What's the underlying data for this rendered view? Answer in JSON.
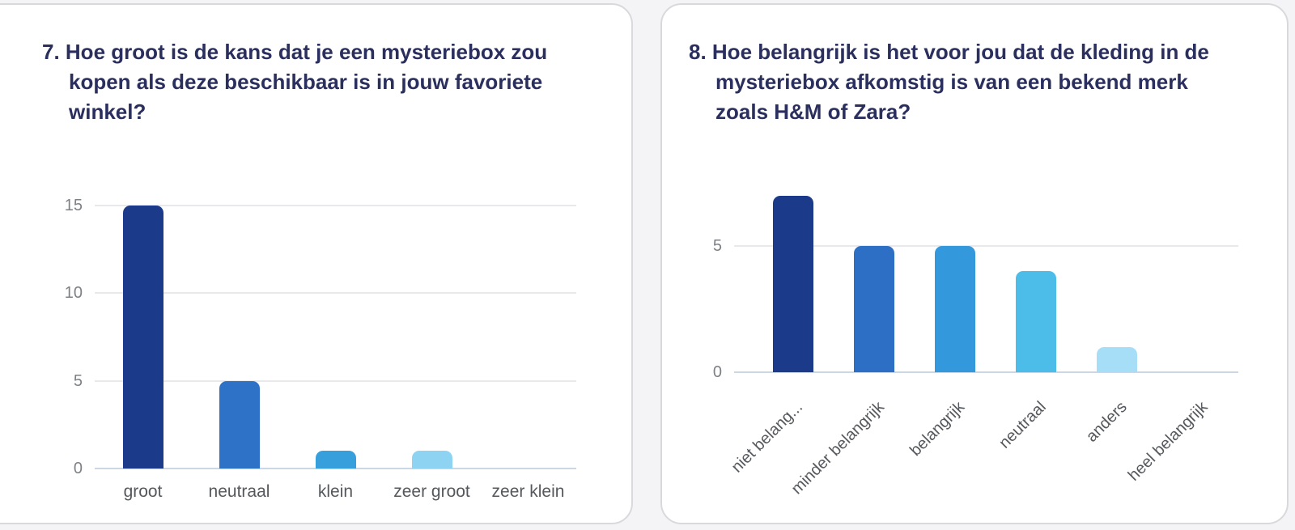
{
  "page": {
    "background": "#f4f4f6",
    "card_background": "#ffffff",
    "card_border_color": "#d9d9dd"
  },
  "colors": {
    "title_text": "#2b2f5e",
    "y_tick_text": "#7d8186",
    "x_label_text": "#55585c",
    "gridline": "#e9e9eb",
    "baseline": "#ccd7e6"
  },
  "chart_data": [
    {
      "type": "bar",
      "title_lines": [
        "7. Hoe groot is de kans dat je een mysteriebox zou",
        "kopen als deze beschikbaar is in jouw favoriete",
        "winkel?"
      ],
      "categories": [
        "groot",
        "neutraal",
        "klein",
        "zeer groot",
        "zeer klein"
      ],
      "values": [
        15,
        5,
        1,
        1,
        0
      ],
      "bar_colors": [
        "#1b3a8a",
        "#2e72c7",
        "#379fdc",
        "#8ed4f2",
        "#8ed4f2"
      ],
      "yticks": [
        0,
        5,
        10,
        15
      ],
      "ylim": [
        0,
        15.6
      ],
      "xlabel_rotation": 0,
      "grid": true,
      "legend": "none"
    },
    {
      "type": "bar",
      "title_lines": [
        "8. Hoe belangrijk is het voor jou dat de kleding in de",
        "mysteriebox afkomstig is van een bekend merk",
        "zoals H&M of Zara?"
      ],
      "categories": [
        "niet belang...",
        "minder belangrijk",
        "belangrijk",
        "neutraal",
        "anders",
        "heel belangrijk"
      ],
      "values": [
        7,
        5,
        5,
        4,
        1,
        0
      ],
      "bar_colors": [
        "#1b3a8a",
        "#2d6fc4",
        "#3498dc",
        "#4cbde9",
        "#a6def7",
        "#a6def7"
      ],
      "yticks": [
        0,
        5
      ],
      "ylim": [
        0,
        7.3
      ],
      "xlabel_rotation": -45,
      "grid": true,
      "legend": "none"
    }
  ]
}
